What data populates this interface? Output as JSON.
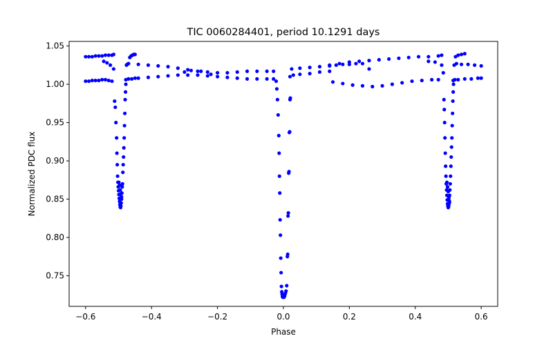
{
  "chart_data": {
    "type": "scatter",
    "title": "TIC 0060284401, period 10.1291 days",
    "xlabel": "Phase",
    "ylabel": "Normalized PDC flux",
    "xlim": [
      -0.65,
      0.65
    ],
    "ylim": [
      0.71,
      1.056
    ],
    "grid": false,
    "marker_color": "#0000ff",
    "x_ticks": [
      -0.6,
      -0.4,
      -0.2,
      0.0,
      0.2,
      0.4,
      0.6
    ],
    "x_tick_labels": [
      "−0.6",
      "−0.4",
      "−0.2",
      "0.0",
      "0.2",
      "0.4",
      "0.6"
    ],
    "y_ticks": [
      0.75,
      0.8,
      0.85,
      0.9,
      0.95,
      1.0,
      1.05
    ],
    "y_tick_labels": [
      "0.75",
      "0.80",
      "0.85",
      "0.90",
      "0.95",
      "1.00",
      "1.05"
    ],
    "series": [
      {
        "points": [
          [
            -0.6,
            1.036
          ],
          [
            -0.59,
            1.036
          ],
          [
            -0.58,
            1.036
          ],
          [
            -0.57,
            1.037
          ],
          [
            -0.56,
            1.037
          ],
          [
            -0.55,
            1.037
          ],
          [
            -0.54,
            1.038
          ],
          [
            -0.53,
            1.038
          ],
          [
            -0.52,
            1.038
          ],
          [
            -0.515,
            1.039
          ],
          [
            -0.6,
            1.004
          ],
          [
            -0.59,
            1.004
          ],
          [
            -0.58,
            1.005
          ],
          [
            -0.57,
            1.005
          ],
          [
            -0.56,
            1.005
          ],
          [
            -0.55,
            1.006
          ],
          [
            -0.54,
            1.006
          ],
          [
            -0.53,
            1.005
          ],
          [
            -0.52,
            1.004
          ],
          [
            -0.545,
            1.03
          ],
          [
            -0.535,
            1.028
          ],
          [
            -0.525,
            1.025
          ],
          [
            -0.515,
            1.02
          ],
          [
            -0.512,
            0.978
          ],
          [
            -0.51,
            0.97
          ],
          [
            -0.508,
            0.95
          ],
          [
            -0.506,
            0.93
          ],
          [
            -0.505,
            0.91
          ],
          [
            -0.504,
            0.895
          ],
          [
            -0.503,
            0.88
          ],
          [
            -0.502,
            0.872
          ],
          [
            -0.501,
            0.866
          ],
          [
            -0.5,
            0.861
          ],
          [
            -0.499,
            0.856
          ],
          [
            -0.498,
            0.851
          ],
          [
            -0.497,
            0.847
          ],
          [
            -0.496,
            0.843
          ],
          [
            -0.495,
            0.84
          ],
          [
            -0.494,
            0.839
          ],
          [
            -0.493,
            0.841
          ],
          [
            -0.492,
            0.845
          ],
          [
            -0.491,
            0.85
          ],
          [
            -0.49,
            0.858
          ],
          [
            -0.489,
            0.866
          ],
          [
            -0.499,
            0.872
          ],
          [
            -0.497,
            0.868
          ],
          [
            -0.495,
            0.862
          ],
          [
            -0.493,
            0.857
          ],
          [
            -0.491,
            0.853
          ],
          [
            -0.488,
            0.87
          ],
          [
            -0.487,
            0.885
          ],
          [
            -0.486,
            0.895
          ],
          [
            -0.485,
            0.905
          ],
          [
            -0.484,
            0.917
          ],
          [
            -0.483,
            0.93
          ],
          [
            -0.482,
            0.946
          ],
          [
            -0.481,
            0.962
          ],
          [
            -0.48,
            0.98
          ],
          [
            -0.479,
            0.99
          ],
          [
            -0.478,
            1.0
          ],
          [
            -0.476,
            1.025
          ],
          [
            -0.474,
            1.026
          ],
          [
            -0.47,
            1.027
          ],
          [
            -0.466,
            1.035
          ],
          [
            -0.462,
            1.037
          ],
          [
            -0.458,
            1.038
          ],
          [
            -0.454,
            1.039
          ],
          [
            -0.45,
            1.039
          ],
          [
            -0.478,
            1.006
          ],
          [
            -0.47,
            1.007
          ],
          [
            -0.46,
            1.007
          ],
          [
            -0.45,
            1.008
          ],
          [
            -0.47,
            1.027
          ],
          [
            -0.44,
            1.026
          ],
          [
            -0.41,
            1.025
          ],
          [
            -0.38,
            1.024
          ],
          [
            -0.35,
            1.023
          ],
          [
            -0.32,
            1.021
          ],
          [
            -0.29,
            1.019
          ],
          [
            -0.26,
            1.017
          ],
          [
            -0.23,
            1.016
          ],
          [
            -0.2,
            1.015
          ],
          [
            -0.17,
            1.015
          ],
          [
            -0.14,
            1.016
          ],
          [
            -0.11,
            1.017
          ],
          [
            -0.08,
            1.017
          ],
          [
            -0.05,
            1.017
          ],
          [
            -0.03,
            1.017
          ],
          [
            -0.44,
            1.008
          ],
          [
            -0.41,
            1.009
          ],
          [
            -0.38,
            1.01
          ],
          [
            -0.35,
            1.011
          ],
          [
            -0.32,
            1.012
          ],
          [
            -0.29,
            1.012
          ],
          [
            -0.26,
            1.012
          ],
          [
            -0.23,
            1.011
          ],
          [
            -0.2,
            1.01
          ],
          [
            -0.17,
            1.009
          ],
          [
            -0.14,
            1.008
          ],
          [
            -0.11,
            1.007
          ],
          [
            -0.08,
            1.007
          ],
          [
            -0.05,
            1.007
          ],
          [
            -0.03,
            1.007
          ],
          [
            -0.3,
            1.016
          ],
          [
            -0.28,
            1.018
          ],
          [
            -0.25,
            1.017
          ],
          [
            -0.22,
            1.013
          ],
          [
            -0.022,
            1.004
          ],
          [
            -0.02,
            0.994
          ],
          [
            -0.018,
            0.98
          ],
          [
            -0.016,
            0.96
          ],
          [
            -0.014,
            0.933
          ],
          [
            -0.013,
            0.91
          ],
          [
            -0.012,
            0.88
          ],
          [
            -0.011,
            0.858
          ],
          [
            -0.01,
            0.823
          ],
          [
            -0.009,
            0.803
          ],
          [
            -0.008,
            0.773
          ],
          [
            -0.007,
            0.754
          ],
          [
            -0.006,
            0.736
          ],
          [
            -0.005,
            0.729
          ],
          [
            -0.004,
            0.726
          ],
          [
            -0.003,
            0.723
          ],
          [
            -0.002,
            0.722
          ],
          [
            0.0,
            0.722
          ],
          [
            0.002,
            0.722
          ],
          [
            0.004,
            0.724
          ],
          [
            0.006,
            0.727
          ],
          [
            0.008,
            0.73
          ],
          [
            0.01,
            0.737
          ],
          [
            0.012,
            0.775
          ],
          [
            0.013,
            0.778
          ],
          [
            0.014,
            0.828
          ],
          [
            0.015,
            0.832
          ],
          [
            0.016,
            0.884
          ],
          [
            0.017,
            0.886
          ],
          [
            0.018,
            0.937
          ],
          [
            0.019,
            0.938
          ],
          [
            0.02,
            0.98
          ],
          [
            0.021,
            0.982
          ],
          [
            0.02,
            1.01
          ],
          [
            0.03,
            1.012
          ],
          [
            0.05,
            1.013
          ],
          [
            0.08,
            1.014
          ],
          [
            0.11,
            1.016
          ],
          [
            0.14,
            1.017
          ],
          [
            0.025,
            1.02
          ],
          [
            0.05,
            1.021
          ],
          [
            0.08,
            1.022
          ],
          [
            0.11,
            1.023
          ],
          [
            0.14,
            1.025
          ],
          [
            0.17,
            1.027
          ],
          [
            0.2,
            1.029
          ],
          [
            0.23,
            1.03
          ],
          [
            0.26,
            1.031
          ],
          [
            0.29,
            1.032
          ],
          [
            0.32,
            1.033
          ],
          [
            0.35,
            1.034
          ],
          [
            0.38,
            1.035
          ],
          [
            0.41,
            1.036
          ],
          [
            0.44,
            1.036
          ],
          [
            0.47,
            1.037
          ],
          [
            0.48,
            1.038
          ],
          [
            0.15,
            1.003
          ],
          [
            0.18,
            1.001
          ],
          [
            0.21,
            0.999
          ],
          [
            0.24,
            0.998
          ],
          [
            0.27,
            0.997
          ],
          [
            0.3,
            0.998
          ],
          [
            0.33,
            1.0
          ],
          [
            0.36,
            1.002
          ],
          [
            0.39,
            1.004
          ],
          [
            0.42,
            1.005
          ],
          [
            0.45,
            1.006
          ],
          [
            0.47,
            1.006
          ],
          [
            0.14,
            1.024
          ],
          [
            0.16,
            1.025
          ],
          [
            0.18,
            1.026
          ],
          [
            0.2,
            1.026
          ],
          [
            0.22,
            1.027
          ],
          [
            0.24,
            1.027
          ],
          [
            0.26,
            1.02
          ],
          [
            0.44,
            1.03
          ],
          [
            0.46,
            1.029
          ],
          [
            0.48,
            1.025
          ],
          [
            0.485,
            1.015
          ],
          [
            0.487,
            0.98
          ],
          [
            0.488,
            0.967
          ],
          [
            0.489,
            0.95
          ],
          [
            0.49,
            0.93
          ],
          [
            0.491,
            0.91
          ],
          [
            0.492,
            0.893
          ],
          [
            0.493,
            0.88
          ],
          [
            0.494,
            0.87
          ],
          [
            0.495,
            0.862
          ],
          [
            0.496,
            0.855
          ],
          [
            0.497,
            0.849
          ],
          [
            0.498,
            0.844
          ],
          [
            0.499,
            0.841
          ],
          [
            0.5,
            0.839
          ],
          [
            0.501,
            0.84
          ],
          [
            0.502,
            0.843
          ],
          [
            0.503,
            0.848
          ],
          [
            0.504,
            0.855
          ],
          [
            0.505,
            0.862
          ],
          [
            0.506,
            0.87
          ],
          [
            0.507,
            0.88
          ],
          [
            0.496,
            0.872
          ],
          [
            0.498,
            0.866
          ],
          [
            0.5,
            0.86
          ],
          [
            0.502,
            0.852
          ],
          [
            0.504,
            0.846
          ],
          [
            0.508,
            0.893
          ],
          [
            0.509,
            0.905
          ],
          [
            0.51,
            0.918
          ],
          [
            0.511,
            0.93
          ],
          [
            0.512,
            0.946
          ],
          [
            0.513,
            0.962
          ],
          [
            0.514,
            0.978
          ],
          [
            0.515,
            0.99
          ],
          [
            0.516,
            1.0
          ],
          [
            0.515,
            1.005
          ],
          [
            0.52,
            1.006
          ],
          [
            0.53,
            1.006
          ],
          [
            0.55,
            1.007
          ],
          [
            0.57,
            1.007
          ],
          [
            0.59,
            1.008
          ],
          [
            0.6,
            1.008
          ],
          [
            0.518,
            1.025
          ],
          [
            0.525,
            1.027
          ],
          [
            0.54,
            1.026
          ],
          [
            0.56,
            1.026
          ],
          [
            0.58,
            1.025
          ],
          [
            0.6,
            1.024
          ],
          [
            0.522,
            1.036
          ],
          [
            0.53,
            1.038
          ],
          [
            0.54,
            1.039
          ],
          [
            0.55,
            1.04
          ]
        ]
      }
    ]
  }
}
